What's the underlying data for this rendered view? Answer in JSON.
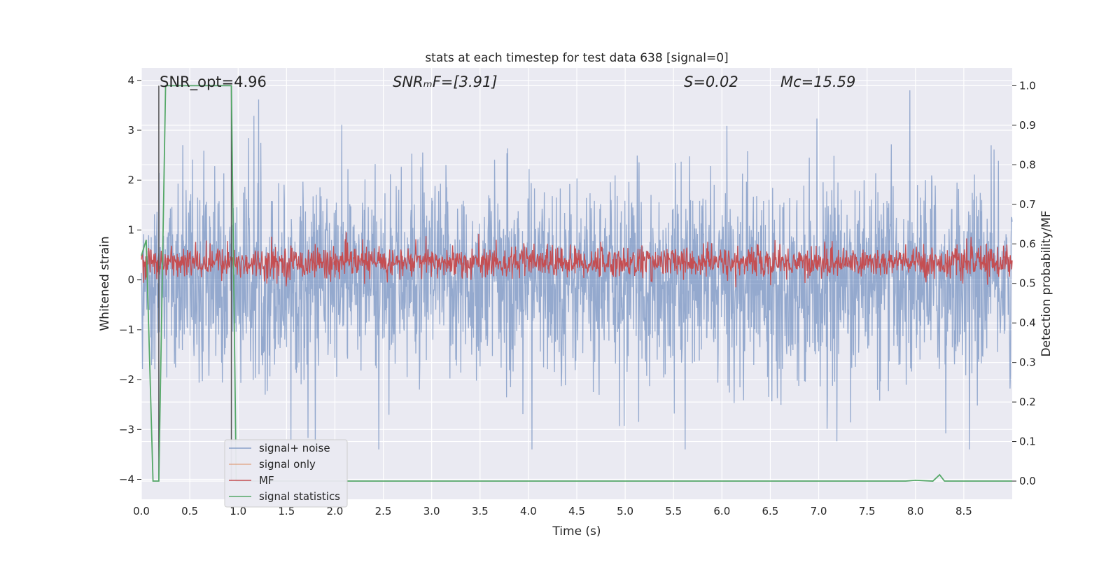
{
  "chart_data": {
    "type": "line",
    "title": "stats at each timestep for test data 638 [signal=0]",
    "xlabel": "Time (s)",
    "ylabel": "Whitened strain",
    "ylabel_right": "Detection probability/MF",
    "xlim": [
      0.0,
      9.0
    ],
    "ylim": [
      -4.4,
      4.25
    ],
    "ylim_right": [
      -0.046,
      1.045
    ],
    "x_ticks": [
      0.0,
      0.5,
      1.0,
      1.5,
      2.0,
      2.5,
      3.0,
      3.5,
      4.0,
      4.5,
      5.0,
      5.5,
      6.0,
      6.5,
      7.0,
      7.5,
      8.0,
      8.5
    ],
    "x_tick_labels": [
      "0.0",
      "0.5",
      "1.0",
      "1.5",
      "2.0",
      "2.5",
      "3.0",
      "3.5",
      "4.0",
      "4.5",
      "5.0",
      "5.5",
      "6.0",
      "6.5",
      "7.0",
      "7.5",
      "8.0",
      "8.5"
    ],
    "y_ticks": [
      4,
      3,
      2,
      1,
      0,
      -1,
      -2,
      -3,
      -4
    ],
    "y_tick_labels": [
      "4",
      "3",
      "2",
      "1",
      "0",
      "−1",
      "−2",
      "−3",
      "−4"
    ],
    "y_right_ticks": [
      1.0,
      0.9,
      0.8,
      0.7,
      0.6,
      0.5,
      0.4,
      0.3,
      0.2,
      0.1,
      0.0
    ],
    "y_right_tick_labels": [
      "1.0",
      "0.9",
      "0.8",
      "0.7",
      "0.6",
      "0.5",
      "0.4",
      "0.3",
      "0.2",
      "0.1",
      "0.0"
    ],
    "grid": true,
    "legend_position": "lower-left",
    "annotations": [
      {
        "id": "snr-opt",
        "text": "SNR_opt=4.96"
      },
      {
        "id": "snr-mf",
        "text": "SNRₘF=[3.91]"
      },
      {
        "id": "s-value",
        "text": "S=0.02"
      },
      {
        "id": "mc-value",
        "text": "Mc=15.59"
      }
    ],
    "markers": [
      {
        "name": "start marker",
        "x": 0.18,
        "color": "#555555"
      },
      {
        "name": "end marker",
        "x": 0.93,
        "color": "#555555"
      }
    ],
    "series": [
      {
        "name": "signal+ noise",
        "color": "#4c72b0",
        "axis": "left",
        "description_of_values": "dense whitened strain noise around 0, roughly between -2.8 and 3.2 with spikes",
        "typical_range": [
          -2.8,
          3.2
        ],
        "x_range": [
          0.0,
          9.0
        ]
      },
      {
        "name": "signal only",
        "color": "#dd8452",
        "axis": "left",
        "x": [],
        "y": []
      },
      {
        "name": "MF",
        "color": "#c44e52",
        "axis": "left",
        "description_of_values": "matched filter output oscillating around 0.3",
        "typical_range": [
          -0.05,
          0.75
        ],
        "x_range": [
          0.0,
          9.0
        ]
      },
      {
        "name": "signal statistics",
        "color": "#55a868",
        "axis": "right",
        "x": [
          0.0,
          0.05,
          0.12,
          0.18,
          0.25,
          0.93,
          0.98,
          1.05,
          7.9,
          8.0,
          8.18,
          8.25,
          8.3,
          8.35,
          9.0
        ],
        "y": [
          0.57,
          0.61,
          0.0,
          0.0,
          1.0,
          1.0,
          0.0,
          0.0,
          0.0,
          0.002,
          0.0,
          0.016,
          0.0,
          0.0,
          0.0
        ]
      }
    ]
  },
  "legend": {
    "items": [
      {
        "label": "signal+ noise",
        "color": "#4c72b0"
      },
      {
        "label": "signal only",
        "color": "#dd8452"
      },
      {
        "label": "MF",
        "color": "#c44e52"
      },
      {
        "label": "signal statistics",
        "color": "#55a868"
      }
    ]
  },
  "colors": {
    "plot_background": "#eaeaf2",
    "grid": "#ffffff"
  }
}
